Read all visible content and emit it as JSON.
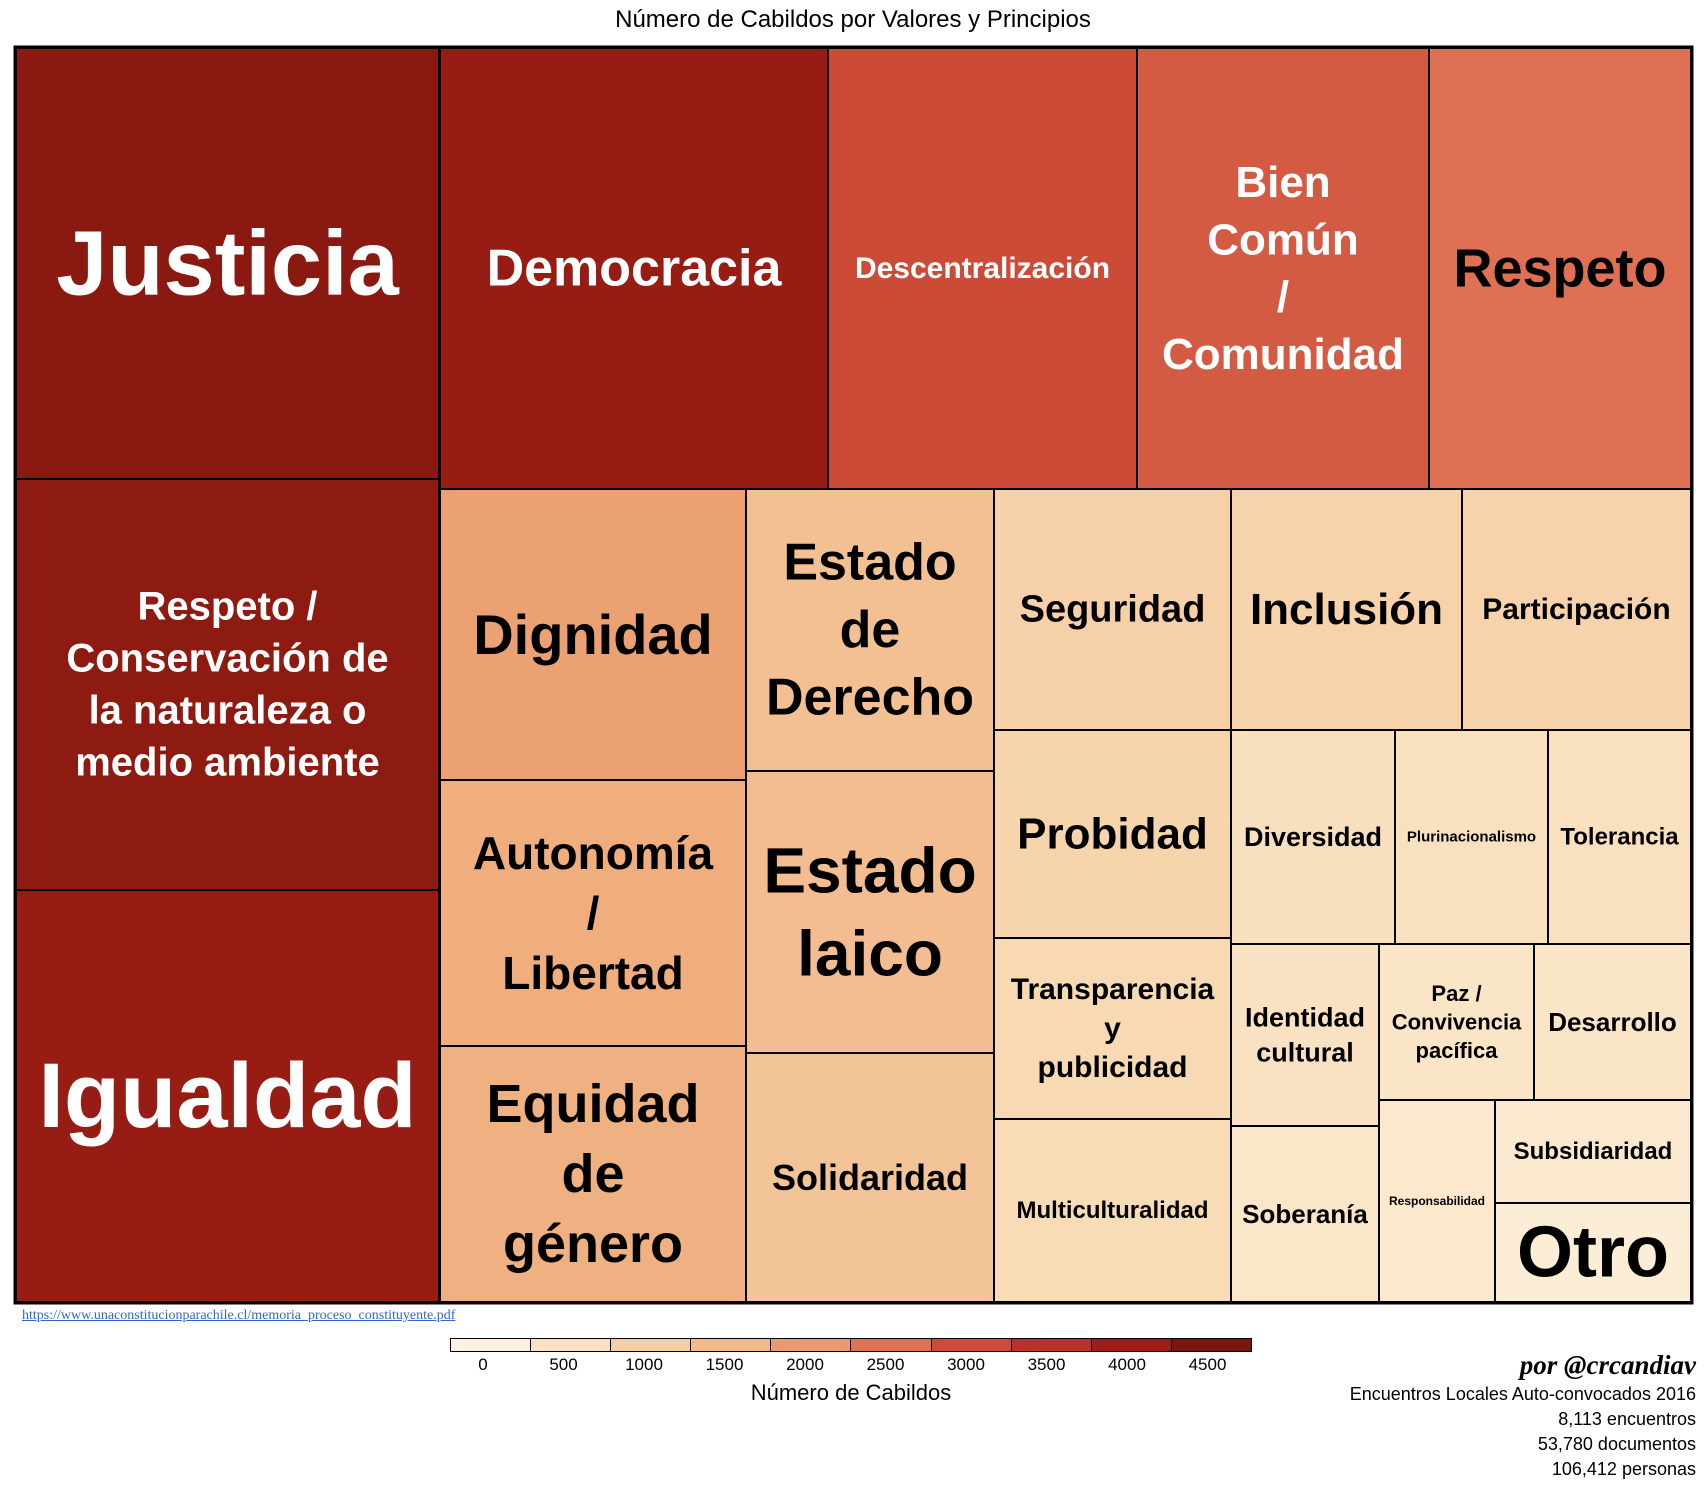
{
  "title": "Número de Cabildos por Valores y Principios",
  "source_url": "https://www.unaconstitucionparachile.cl/memoria_proceso_constituyente.pdf",
  "legend": {
    "title": "Número de Cabildos",
    "ticks": [
      "0",
      "500",
      "1000",
      "1500",
      "2000",
      "2500",
      "3000",
      "3500",
      "4000",
      "4500"
    ],
    "colors": [
      "#fdf0e2",
      "#fae0c4",
      "#f6cda4",
      "#f2b98b",
      "#eb9a6e",
      "#de7354",
      "#cc4b39",
      "#b5332a",
      "#9a1f17",
      "#7a150f"
    ]
  },
  "credits": {
    "author": "por @crcandiav",
    "line1": "Encuentros Locales Auto-convocados 2016",
    "line2": "8,113 encuentros",
    "line3": "53,780 documentos",
    "line4": "106,412 personas"
  },
  "chart_data": {
    "type": "treemap",
    "title": "Número de Cabildos por Valores y Principios",
    "color_scale_label": "Número de Cabildos",
    "color_range": [
      0,
      4800
    ],
    "items": [
      {
        "label": [
          "Justicia"
        ],
        "value": 4700,
        "color": "#8a1a11",
        "text_color": "#ffffff"
      },
      {
        "label": [
          "Democracia"
        ],
        "value": 4250,
        "color": "#961c14",
        "text_color": "#ffffff"
      },
      {
        "label": [
          "Respeto /",
          "Conservación de",
          "la naturaleza o",
          "medio ambiente"
        ],
        "value": 4550,
        "color": "#8e1b12",
        "text_color": "#ffffff"
      },
      {
        "label": [
          "Igualdad"
        ],
        "value": 4350,
        "color": "#961c14",
        "text_color": "#ffffff"
      },
      {
        "label": [
          "Descentralización"
        ],
        "value": 2950,
        "color": "#cc4b37",
        "text_color": "#ffffff"
      },
      {
        "label": [
          "Bien",
          "Común",
          "/",
          "Comunidad"
        ],
        "value": 2750,
        "color": "#d35a43",
        "text_color": "#ffffff"
      },
      {
        "label": [
          "Respeto"
        ],
        "value": 2450,
        "color": "#e07054",
        "text_color": "#000000"
      },
      {
        "label": [
          "Dignidad"
        ],
        "value": 1900,
        "color": "#eca173",
        "text_color": "#000000"
      },
      {
        "label": [
          "Autonomía",
          "/",
          "Libertad"
        ],
        "value": 1750,
        "color": "#f0ad7e",
        "text_color": "#000000"
      },
      {
        "label": [
          "Equidad",
          "de",
          "género"
        ],
        "value": 1700,
        "color": "#f0b182",
        "text_color": "#000000"
      },
      {
        "label": [
          "Estado",
          "de",
          "Derecho"
        ],
        "value": 1500,
        "color": "#f3c094",
        "text_color": "#000000"
      },
      {
        "label": [
          "Estado",
          "laico"
        ],
        "value": 1550,
        "color": "#f3bd91",
        "text_color": "#000000"
      },
      {
        "label": [
          "Solidaridad"
        ],
        "value": 1450,
        "color": "#f3c498",
        "text_color": "#000000"
      },
      {
        "label": [
          "Seguridad"
        ],
        "value": 1200,
        "color": "#f6d0a8",
        "text_color": "#000000"
      },
      {
        "label": [
          "Inclusión"
        ],
        "value": 1150,
        "color": "#f6d3ab",
        "text_color": "#000000"
      },
      {
        "label": [
          "Participación"
        ],
        "value": 1150,
        "color": "#f6d3ab",
        "text_color": "#000000"
      },
      {
        "label": [
          "Probidad"
        ],
        "value": 1100,
        "color": "#f6d4ac",
        "text_color": "#000000"
      },
      {
        "label": [
          "Transparencia",
          "y",
          "publicidad"
        ],
        "value": 1000,
        "color": "#f7d9b3",
        "text_color": "#000000"
      },
      {
        "label": [
          "Multiculturalidad"
        ],
        "value": 900,
        "color": "#f8dcb8",
        "text_color": "#000000"
      },
      {
        "label": [
          "Diversidad"
        ],
        "value": 850,
        "color": "#f8dfbd",
        "text_color": "#000000"
      },
      {
        "label": [
          "Plurinacionalismo"
        ],
        "value": 800,
        "color": "#f9e1c0",
        "text_color": "#000000"
      },
      {
        "label": [
          "Tolerancia"
        ],
        "value": 800,
        "color": "#f9e1c0",
        "text_color": "#000000"
      },
      {
        "label": [
          "Identidad",
          "cultural"
        ],
        "value": 750,
        "color": "#f9e2c2",
        "text_color": "#000000"
      },
      {
        "label": [
          "Paz /",
          "Convivencia",
          "pacífica"
        ],
        "value": 700,
        "color": "#fae5c7",
        "text_color": "#000000"
      },
      {
        "label": [
          "Desarrollo"
        ],
        "value": 700,
        "color": "#fae5c7",
        "text_color": "#000000"
      },
      {
        "label": [
          "Soberanía"
        ],
        "value": 650,
        "color": "#fae6c9",
        "text_color": "#000000"
      },
      {
        "label": [
          "Responsabilidad"
        ],
        "value": 600,
        "color": "#fbe8cd",
        "text_color": "#000000"
      },
      {
        "label": [
          "Subsidiaridad"
        ],
        "value": 500,
        "color": "#fbe9cf",
        "text_color": "#000000"
      },
      {
        "label": [
          "Otro"
        ],
        "value": 450,
        "color": "#fcedd6",
        "text_color": "#000000"
      }
    ]
  }
}
